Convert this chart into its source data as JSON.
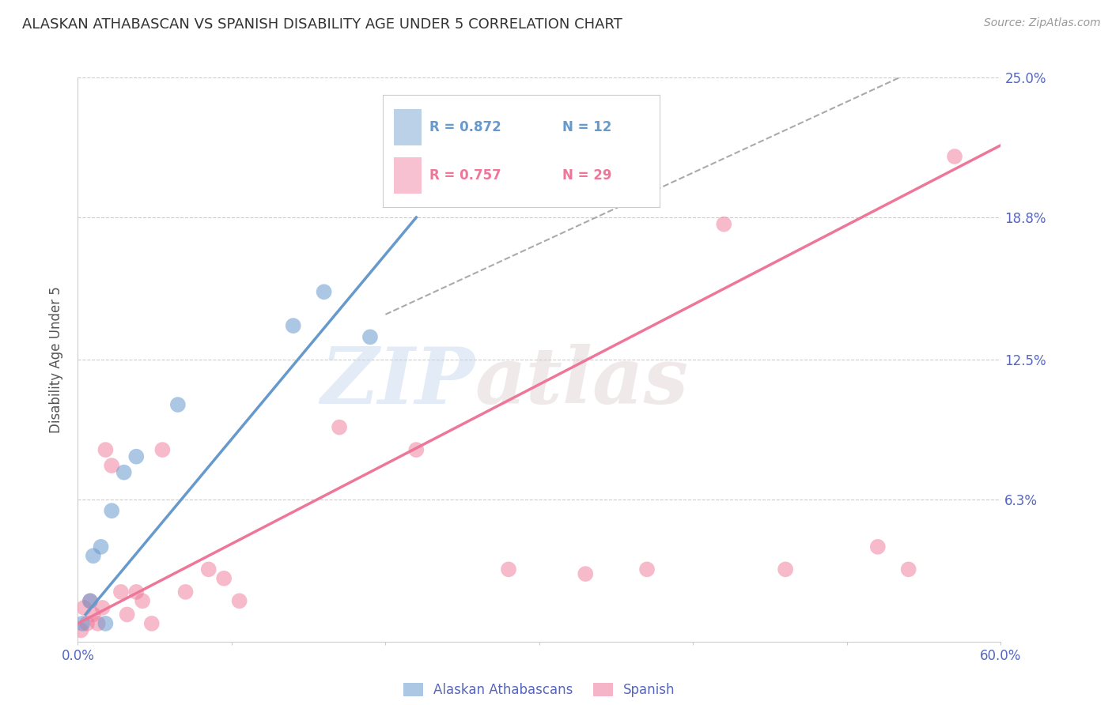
{
  "title": "ALASKAN ATHABASCAN VS SPANISH DISABILITY AGE UNDER 5 CORRELATION CHART",
  "source": "Source: ZipAtlas.com",
  "ylabel": "Disability Age Under 5",
  "y_tick_values": [
    6.3,
    12.5,
    18.8,
    25.0
  ],
  "xlim": [
    0.0,
    60.0
  ],
  "ylim": [
    0.0,
    25.0
  ],
  "legend_label_alaskan": "Alaskan Athabascans",
  "legend_label_spanish": "Spanish",
  "blue_color": "#6699cc",
  "pink_color": "#ee7799",
  "blue_scatter": [
    [
      0.3,
      0.8
    ],
    [
      0.8,
      1.8
    ],
    [
      1.0,
      3.8
    ],
    [
      1.5,
      4.2
    ],
    [
      1.8,
      0.8
    ],
    [
      2.2,
      5.8
    ],
    [
      3.0,
      7.5
    ],
    [
      3.8,
      8.2
    ],
    [
      6.5,
      10.5
    ],
    [
      14.0,
      14.0
    ],
    [
      16.0,
      15.5
    ],
    [
      19.0,
      13.5
    ]
  ],
  "pink_scatter": [
    [
      0.2,
      0.5
    ],
    [
      0.4,
      1.5
    ],
    [
      0.6,
      0.8
    ],
    [
      0.8,
      1.8
    ],
    [
      1.0,
      1.2
    ],
    [
      1.3,
      0.8
    ],
    [
      1.6,
      1.5
    ],
    [
      1.8,
      8.5
    ],
    [
      2.2,
      7.8
    ],
    [
      2.8,
      2.2
    ],
    [
      3.2,
      1.2
    ],
    [
      3.8,
      2.2
    ],
    [
      4.2,
      1.8
    ],
    [
      4.8,
      0.8
    ],
    [
      5.5,
      8.5
    ],
    [
      7.0,
      2.2
    ],
    [
      8.5,
      3.2
    ],
    [
      9.5,
      2.8
    ],
    [
      10.5,
      1.8
    ],
    [
      17.0,
      9.5
    ],
    [
      22.0,
      8.5
    ],
    [
      28.0,
      3.2
    ],
    [
      33.0,
      3.0
    ],
    [
      37.0,
      3.2
    ],
    [
      42.0,
      18.5
    ],
    [
      46.0,
      3.2
    ],
    [
      52.0,
      4.2
    ],
    [
      54.0,
      3.2
    ],
    [
      57.0,
      21.5
    ]
  ],
  "blue_line": {
    "x_start": 0.5,
    "y_start": 1.2,
    "x_end": 22.0,
    "y_end": 18.8
  },
  "pink_line": {
    "x_start": 0.0,
    "y_start": 0.8,
    "x_end": 60.0,
    "y_end": 22.0
  },
  "diag_line": {
    "x_start": 20.0,
    "y_start": 14.5,
    "x_end": 55.0,
    "y_end": 25.5
  },
  "background_color": "#ffffff",
  "grid_color": "#cccccc",
  "title_color": "#333333",
  "axis_label_color": "#5566bb",
  "watermark": "ZIPatlas"
}
